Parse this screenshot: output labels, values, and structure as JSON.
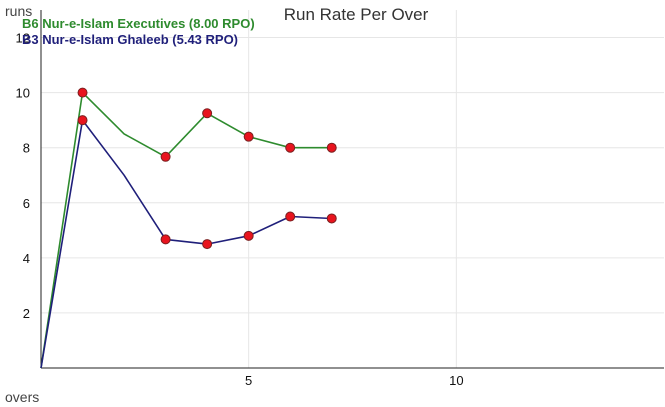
{
  "chart_data": {
    "type": "line",
    "title": "Run Rate Per Over",
    "xlabel": "overs",
    "ylabel": "runs",
    "xlim": [
      0,
      15
    ],
    "ylim": [
      0,
      13
    ],
    "x_ticks": [
      5,
      10
    ],
    "y_ticks": [
      2,
      4,
      6,
      8,
      10,
      12
    ],
    "grid": true,
    "legend_position": "top-left",
    "series": [
      {
        "name": "B6 Nur-e-Islam Executives (8.00 RPO)",
        "color": "#2e8b2e",
        "x": [
          0,
          1,
          2,
          3,
          4,
          5,
          6,
          7
        ],
        "y": [
          0,
          10,
          8.5,
          7.67,
          9.25,
          8.4,
          8.0,
          8.0
        ],
        "markers": [
          false,
          true,
          false,
          true,
          true,
          true,
          true,
          true
        ]
      },
      {
        "name": "B3 Nur-e-Islam Ghaleeb (5.43 RPO)",
        "color": "#1f1f7a",
        "x": [
          0,
          1,
          2,
          3,
          4,
          5,
          6,
          7
        ],
        "y": [
          0,
          9,
          7.0,
          4.67,
          4.5,
          4.8,
          5.5,
          5.43
        ],
        "markers": [
          false,
          true,
          false,
          true,
          true,
          true,
          true,
          true
        ]
      }
    ],
    "marker_color": "#e8141e"
  }
}
